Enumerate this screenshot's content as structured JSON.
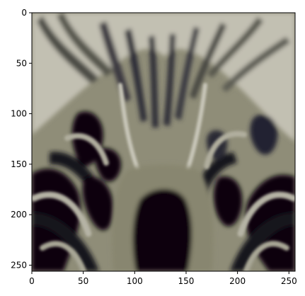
{
  "figure": {
    "background": "#ffffff",
    "content": "zebra-face-closeup",
    "palette": {
      "light_stripe": "#c2c0b2",
      "mid_stripe": "#8f8d78",
      "dark_stripe": "#15141f",
      "nose": "#07060c"
    }
  },
  "chart_data": {
    "type": "heatmap",
    "title": "",
    "xlabel": "",
    "ylabel": "",
    "xlim": [
      0,
      256
    ],
    "ylim": [
      256,
      0
    ],
    "grid": false,
    "legend": "none",
    "x_ticks": [
      {
        "value": 0,
        "label": "0"
      },
      {
        "value": 50,
        "label": "50"
      },
      {
        "value": 100,
        "label": "100"
      },
      {
        "value": 150,
        "label": "150"
      },
      {
        "value": 200,
        "label": "200"
      },
      {
        "value": 250,
        "label": "250"
      }
    ],
    "y_ticks": [
      {
        "value": 0,
        "label": "0"
      },
      {
        "value": 50,
        "label": "50"
      },
      {
        "value": 100,
        "label": "100"
      },
      {
        "value": 150,
        "label": "150"
      },
      {
        "value": 200,
        "label": "200"
      },
      {
        "value": 250,
        "label": "250"
      }
    ]
  }
}
